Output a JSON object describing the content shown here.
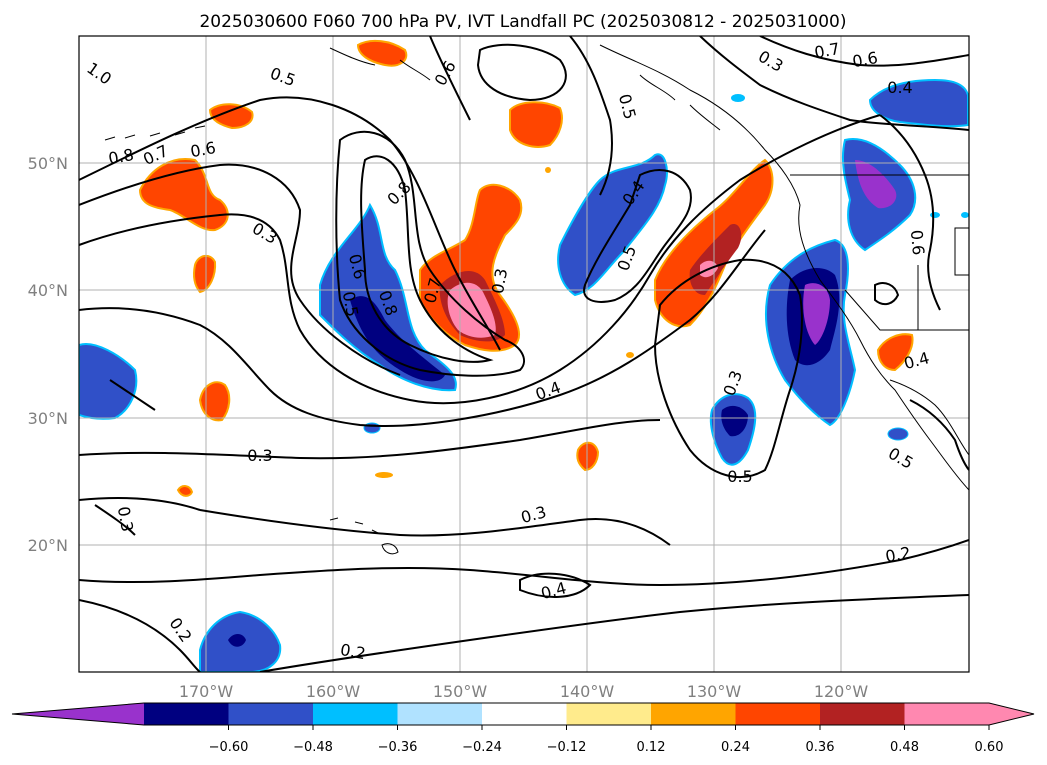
{
  "chart_data": {
    "type": "map",
    "title": "2025030600 F060 700 hPa PV, IVT Landfall PC (2025030812 - 2025031000)",
    "lat_labels": [
      "50°N",
      "40°N",
      "30°N",
      "20°N"
    ],
    "lon_labels": [
      "170°W",
      "160°W",
      "150°W",
      "140°W",
      "130°W",
      "120°W"
    ],
    "grid": true,
    "colorbar": {
      "orientation": "horizontal",
      "extend": "both",
      "colors": [
        "#9932cc",
        "#000080",
        "#3050c8",
        "#00bfff",
        "#b0e2ff",
        "#ffffff",
        "#ffeb8c",
        "#ffa500",
        "#ff4500",
        "#b22222",
        "#ff88b0",
        "#ff88b0"
      ],
      "tick_labels": [
        "−0.60",
        "−0.48",
        "−0.36",
        "−0.24",
        "−0.12",
        "0.12",
        "0.24",
        "0.36",
        "0.48",
        "0.60"
      ]
    },
    "contour_labels": [
      "1.0",
      "0.5",
      "0.6",
      "0.8",
      "0.7",
      "0.6",
      "0.3",
      "0.8",
      "0.6",
      "0.5",
      "0.8",
      "0.7",
      "0.3",
      "0.4",
      "0.5",
      "0.5",
      "0.4",
      "0.3",
      "0.7",
      "0.6",
      "0.4",
      "0.6",
      "0.3",
      "0.5",
      "0.4",
      "0.5",
      "0.3",
      "0.3",
      "0.3",
      "0.4",
      "0.2",
      "0.2",
      "0.2"
    ],
    "shaded_field": "IVT Landfall PC",
    "contour_field": "700 hPa PV"
  }
}
